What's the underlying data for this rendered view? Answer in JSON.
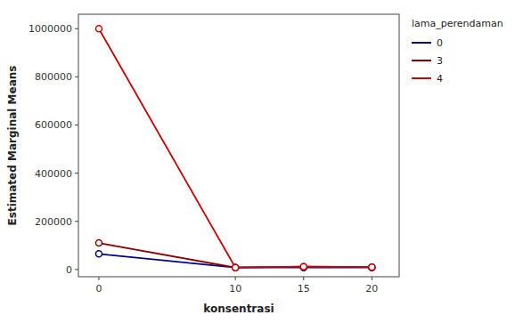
{
  "chart_data": {
    "type": "line",
    "x": [
      0,
      10,
      15,
      20
    ],
    "series": [
      {
        "name": "0",
        "color": "#00008B",
        "values": [
          65000,
          8000,
          8000,
          8000
        ],
        "marker": "circle"
      },
      {
        "name": "3",
        "color": "#8B0000",
        "values": [
          110000,
          8000,
          12000,
          10000
        ],
        "marker": "circle"
      },
      {
        "name": "4",
        "color": "#CC0000",
        "values": [
          1000000,
          8000,
          12000,
          10000
        ],
        "marker": "circle"
      }
    ],
    "x_label": "konsentrasi",
    "y_label": "Estimated Marginal Means",
    "legend_title": "lama_perendaman",
    "xlim": [
      -1.5,
      22
    ],
    "ylim": [
      -30000,
      1060000
    ],
    "xticks": [
      0,
      10,
      15,
      20
    ],
    "yticks": [
      0,
      200000,
      400000,
      600000,
      800000,
      1000000
    ],
    "grid": false,
    "legend": "right"
  }
}
